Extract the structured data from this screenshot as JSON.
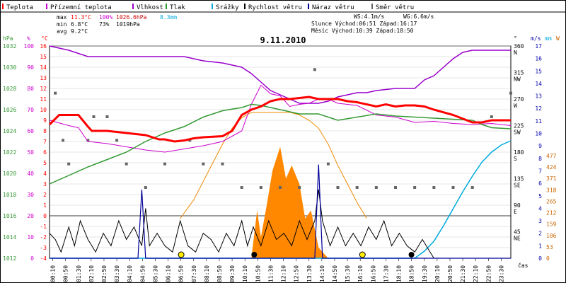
{
  "chart_data": {
    "type": "line",
    "title": "9.11.2010",
    "xlabel": "čas",
    "legend": [
      {
        "name": "Teplota",
        "color": "#ff0000"
      },
      {
        "name": "Přízemní teplota",
        "color": "#cc00cc"
      },
      {
        "name": "Vlhkost",
        "color": "#9900cc"
      },
      {
        "name": "Tlak",
        "color": "#339933"
      },
      {
        "name": "Srážky",
        "color": "#00aadd"
      },
      {
        "name": "Rychlost větru",
        "color": "#000000"
      },
      {
        "name": "Náraz větru",
        "color": "#000099"
      },
      {
        "name": "Směr větru",
        "color": "#666666"
      }
    ],
    "stats": {
      "max_label": "max",
      "min_label": "min",
      "avg_label": "avg",
      "max": {
        "temp": "11.3°C",
        "hum": "100%",
        "press": "1026.6hPa",
        "rain": "8.3mm"
      },
      "min": {
        "temp": "6.8°C",
        "hum": "73%",
        "press": "1019hPa"
      },
      "avg": {
        "temp": "9.2°C"
      },
      "ws": "WS:4.1m/s",
      "wg": "WG:6.6m/s",
      "sun": "Slunce Východ:06:51  Západ:16:17",
      "moon": "Měsíc  Východ:10:39  Západ:18:50"
    },
    "axes": {
      "hpa": {
        "title": "hPa",
        "ticks": [
          "1032",
          "1030",
          "1028",
          "1026",
          "1024",
          "1022",
          "1020",
          "1018",
          "1016",
          "1014",
          "1012"
        ],
        "color": "#339933"
      },
      "pct": {
        "title": "%",
        "ticks": [
          "100",
          "90",
          "80",
          "70",
          "60",
          "50",
          "40",
          "30",
          "20",
          "10",
          "0"
        ],
        "color": "#cc00cc"
      },
      "deg": {
        "title": "°C",
        "ticks": [
          "16",
          "15",
          "14",
          "13",
          "12",
          "11",
          "10",
          "9",
          "8",
          "7",
          "6",
          "5",
          "4",
          "3",
          "2",
          "1",
          "0",
          "-1",
          "-2",
          "-3",
          "-4"
        ],
        "color": "#ff0000"
      },
      "dir": {
        "title": "°",
        "ticks": [
          {
            "v": "360",
            "d": "N"
          },
          {
            "v": "315",
            "d": "NW"
          },
          {
            "v": "270",
            "d": "W"
          },
          {
            "v": "225",
            "d": "SW"
          },
          {
            "v": "180",
            "d": "S"
          },
          {
            "v": "135",
            "d": "SE"
          },
          {
            "v": "90",
            "d": "E"
          },
          {
            "v": "45",
            "d": "NE"
          }
        ]
      },
      "ms": {
        "title": "m/s",
        "ticks": [
          "17",
          "16",
          "15",
          "14",
          "13",
          "12",
          "11",
          "10",
          "9",
          "8",
          "7",
          "6",
          "5",
          "4",
          "3",
          "2",
          "1",
          "0"
        ]
      },
      "mm": {
        "title": "mm",
        "ticks": [
          "477",
          "424",
          "371",
          "318",
          "265",
          "212",
          "159",
          "106",
          "53",
          "0"
        ],
        "color": "#cc6600"
      },
      "w": {
        "title": "W"
      }
    },
    "time_ticks": [
      "00:10",
      "00:50",
      "01:30",
      "02:10",
      "02:50",
      "03:30",
      "04:10",
      "04:50",
      "05:30",
      "06:10",
      "06:50",
      "07:30",
      "08:10",
      "08:50",
      "09:30",
      "10:10",
      "10:50",
      "11:30",
      "12:10",
      "12:50",
      "13:30",
      "14:10",
      "14:50",
      "15:30",
      "16:10",
      "16:50",
      "17:30",
      "18:10",
      "18:50",
      "19:30",
      "20:10",
      "20:50",
      "21:30",
      "22:10",
      "22:50",
      "23:30"
    ],
    "x_hours": [
      0,
      1,
      2,
      3,
      4,
      5,
      6,
      7,
      8,
      9,
      10,
      11,
      12,
      13,
      14,
      15,
      16,
      17,
      18,
      19,
      20,
      21,
      22,
      23,
      24
    ],
    "series": [
      {
        "name": "Teplota",
        "unit": "°C",
        "x": [
          0,
          0.5,
          1.2,
          1.5,
          2,
          2.2,
          3,
          4,
          5,
          5.7,
          6,
          6.5,
          7,
          7.5,
          8,
          9,
          9.5,
          10,
          10.5,
          11,
          11.5,
          12,
          12.5,
          13,
          13.5,
          14,
          14.5,
          15,
          15.5,
          16,
          17,
          17.5,
          18,
          18.5,
          19,
          19.5,
          20,
          21,
          22,
          22.5,
          23,
          24
        ],
        "y": [
          8.6,
          9.5,
          9.5,
          9.5,
          8.4,
          8.0,
          8.0,
          7.8,
          7.6,
          7.2,
          7.2,
          7.0,
          7.1,
          7.3,
          7.4,
          7.5,
          8.0,
          9.5,
          10.0,
          10.3,
          10.8,
          11.0,
          11.0,
          11.1,
          11.2,
          11.0,
          11.0,
          11.0,
          10.8,
          10.7,
          10.3,
          10.5,
          10.3,
          10.4,
          10.4,
          10.3,
          10.0,
          9.5,
          8.8,
          8.8,
          9.0,
          9.0
        ]
      },
      {
        "name": "Přízemní teplota",
        "unit": "°C",
        "x": [
          0,
          1,
          1.5,
          2,
          3,
          4,
          5,
          6,
          7,
          8,
          9,
          10,
          10.5,
          11,
          11.5,
          12,
          12.5,
          13,
          13.5,
          14,
          14.5,
          15,
          16,
          17,
          18,
          19,
          20,
          21,
          22,
          23,
          24
        ],
        "y": [
          9.0,
          8.5,
          8.3,
          7.0,
          6.8,
          6.5,
          6.2,
          6.0,
          6.3,
          6.6,
          7.0,
          8.0,
          10.5,
          12.3,
          11.5,
          11.3,
          10.3,
          10.5,
          10.6,
          11.0,
          11.0,
          10.6,
          10.4,
          9.5,
          9.3,
          8.8,
          8.9,
          8.7,
          8.6,
          8.7,
          8.5
        ]
      },
      {
        "name": "Vlhkost",
        "unit": "%",
        "x": [
          0,
          1,
          2,
          3,
          4,
          5,
          6,
          7,
          8,
          9,
          10,
          10.5,
          11,
          11.5,
          12,
          12.5,
          13,
          13.5,
          14,
          14.5,
          15,
          15.5,
          16,
          16.5,
          17,
          18,
          19,
          19.5,
          20,
          20.5,
          21,
          21.5,
          22,
          23,
          24
        ],
        "y": [
          100,
          98,
          95,
          95,
          95,
          95,
          95,
          95,
          93,
          92,
          90,
          87,
          83,
          79,
          77,
          75,
          73,
          73,
          73,
          74,
          76,
          77,
          78,
          78,
          79,
          80,
          80,
          84,
          86,
          90,
          94,
          97,
          98,
          98,
          98
        ]
      },
      {
        "name": "Tlak",
        "unit": "hPa",
        "x": [
          0,
          1,
          2,
          3,
          4,
          5,
          6,
          7,
          8,
          9,
          10,
          10.5,
          11,
          12,
          13,
          14,
          15,
          16,
          17,
          18,
          19,
          20,
          21,
          22,
          22.5,
          23,
          24
        ],
        "y": [
          1019,
          1019.8,
          1020.6,
          1021.3,
          1022,
          1023,
          1023.8,
          1024.4,
          1025.3,
          1025.9,
          1026.2,
          1026.5,
          1026.4,
          1026.0,
          1025.6,
          1025.6,
          1025.0,
          1025.3,
          1025.6,
          1025.4,
          1025.3,
          1025.2,
          1025.1,
          1025.0,
          1024.6,
          1024.3,
          1024.2
        ]
      },
      {
        "name": "Srážky",
        "unit": "mm",
        "x": [
          0,
          19,
          19.5,
          20,
          20.5,
          21,
          21.5,
          22,
          22.5,
          23,
          23.5,
          24
        ],
        "y": [
          0,
          0,
          0.5,
          1.2,
          2.3,
          3.5,
          4.7,
          5.8,
          6.8,
          7.5,
          8.0,
          8.3
        ]
      },
      {
        "name": "Rychlost větru",
        "unit": "m/s",
        "x": [
          0,
          0.3,
          0.6,
          1,
          1.3,
          1.6,
          2,
          2.4,
          2.8,
          3.2,
          3.6,
          4,
          4.4,
          4.8,
          5,
          5.2,
          5.6,
          6,
          6.4,
          6.8,
          7.2,
          7.6,
          8,
          8.4,
          8.8,
          9.2,
          9.6,
          10,
          10.3,
          10.6,
          11,
          11.4,
          11.8,
          12.2,
          12.6,
          13,
          13.4,
          13.8,
          14,
          14.2,
          14.6,
          15,
          15.4,
          15.8,
          16.2,
          16.6,
          17,
          17.4,
          17.8,
          18.2,
          18.6,
          19,
          19.4,
          19.8,
          20,
          24
        ],
        "y": [
          2,
          1.5,
          0.5,
          2.5,
          1,
          3,
          1.5,
          0.5,
          2,
          1,
          3,
          1.5,
          2.5,
          1,
          4,
          1,
          2,
          1,
          0.5,
          3,
          1,
          0.5,
          2,
          1.5,
          0.5,
          2,
          1,
          3,
          1,
          2.5,
          1,
          3,
          1.5,
          2,
          1,
          3,
          1.5,
          3,
          5.5,
          3,
          1,
          2.5,
          1,
          2,
          1,
          2.5,
          1.5,
          3,
          1,
          2,
          1,
          0.5,
          1.5,
          0.5,
          0,
          0
        ]
      },
      {
        "name": "Náraz větru",
        "unit": "m/s",
        "x": [
          0,
          4.6,
          4.8,
          5,
          13.8,
          14,
          14.2,
          24
        ],
        "y": [
          0,
          0,
          5.5,
          0,
          0,
          7.5,
          0,
          0
        ]
      },
      {
        "name": "Směr větru",
        "unit": "°",
        "x": [
          0.3,
          0.7,
          1,
          2,
          2.3,
          3,
          3.5,
          4,
          5,
          6,
          7.3,
          8,
          9,
          10,
          11,
          12,
          13,
          13.8,
          14.5,
          15,
          16,
          17,
          18,
          19,
          20,
          21,
          22,
          23,
          24
        ],
        "y": [
          315,
          225,
          180,
          225,
          270,
          270,
          225,
          180,
          135,
          180,
          225,
          180,
          180,
          135,
          135,
          135,
          135,
          360,
          180,
          135,
          135,
          135,
          135,
          135,
          135,
          135,
          135,
          270,
          315
        ]
      },
      {
        "name": "Sluneční záření",
        "unit": "W",
        "x": [
          6.8,
          7.5,
          8,
          8.5,
          9,
          9.5,
          10,
          10.5,
          11,
          11.5,
          12,
          12.5,
          13,
          13.5,
          14,
          14.5,
          15,
          15.5,
          16,
          16.5
        ],
        "y": [
          0,
          70,
          140,
          210,
          280,
          340,
          380,
          400,
          400,
          400,
          400,
          400,
          390,
          370,
          340,
          280,
          200,
          130,
          60,
          0
        ]
      }
    ],
    "rain_rate": {
      "x": [
        10.5,
        10.8,
        11,
        11.3,
        11.6,
        12,
        12.3,
        12.6,
        13,
        13.3,
        13.6,
        14,
        14.5
      ],
      "y": [
        0,
        180,
        80,
        200,
        330,
        420,
        300,
        350,
        280,
        150,
        180,
        40,
        0
      ]
    },
    "markers": {
      "sunrise": 6.85,
      "sunset": 16.28,
      "moonrise": 10.65,
      "moonset": 18.83
    }
  }
}
